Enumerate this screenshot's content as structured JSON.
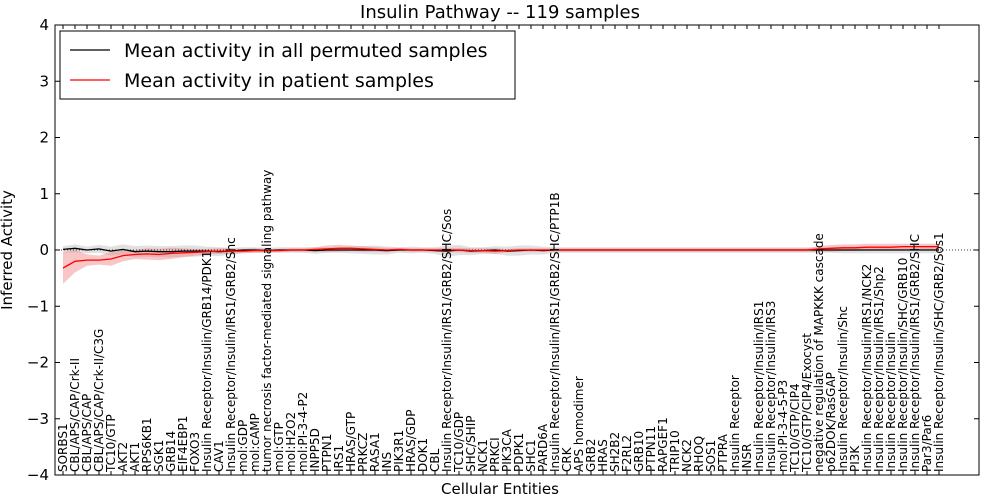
{
  "chart_data": {
    "type": "line",
    "title": "Insulin Pathway -- 119 samples",
    "xlabel": "Cellular Entities",
    "ylabel": "Inferred Activity",
    "ylim": [
      -4,
      4
    ],
    "yticks": [
      "−4",
      "−3",
      "−2",
      "−1",
      "0",
      "1",
      "2",
      "3",
      "4"
    ],
    "legend_position": "top-left",
    "categories": [
      "SORBS1",
      "CBL/APS/CAP/Crk-II",
      "CBL/APS/CAP",
      "CBL/APS/CAP/Crk-II/C3G",
      "TC10/GTP",
      "AKT2",
      "AKT1",
      "RPS6KB1",
      "SGK1",
      "GRB14",
      "EIF4EBP1",
      "FOXO3",
      "Insulin Receptor/Insulin/GRB14/PDK1",
      "CAV1",
      "Insulin Receptor/Insulin/IRS1/GRB2/Shc",
      "mol:GDP",
      "mol:cAMP",
      "tumor necrosis factor-mediated signaling pathway",
      "mol:GTP",
      "mol:H2O2",
      "mol:PI-3-4-P2",
      "INPP5D",
      "PTPN1",
      "IRS1",
      "HRAS/GTP",
      "PRKCZ",
      "RASA1",
      "INS",
      "PIK3R1",
      "HRAS/GDP",
      "DOK1",
      "CBL",
      "Insulin Receptor/Insulin/IRS1/GRB2/SHC/Sos",
      "TC10/GDP",
      "SHC/SHIP",
      "NCK1",
      "PRKCI",
      "PIK3CA",
      "PDPK1",
      "SHC1",
      "PARD6A",
      "Insulin Receptor/Insulin/IRS1/GRB2/SHC/PTP1B",
      "CRK",
      "APS homodimer",
      "GRB2",
      "HRAS",
      "SH2B2",
      "F2RL2",
      "GRB10",
      "PTPN11",
      "RAPGEF1",
      "TRIP10",
      "NCK2",
      "RHOQ",
      "SOS1",
      "PTPRA",
      "Insulin Receptor",
      "INSR",
      "Insulin Receptor/Insulin/IRS1",
      "Insulin Receptor/Insulin/IRS3",
      "mol:PI-3-4-5-P3",
      "TC10/GTP/CIP4",
      "TC10/GTP/CIP4/Exocyst",
      "negative regulation of MAPKKK cascade",
      "p62DOK/RasGAP",
      "Insulin Receptor/Insulin/Shc",
      "PI3K",
      "Insulin Receptor/Insulin/IRS1/NCK2",
      "Insulin Receptor/Insulin/IRS1/Shp2",
      "Insulin Receptor/Insulin",
      "Insulin Receptor/Insulin/SHC/GRB10",
      "Insulin Receptor/Insulin/IRS1/GRB2/SHC",
      "Par3/Par6",
      "Insulin Receptor/Insulin/SHC/GRB2/Sos1"
    ],
    "series": [
      {
        "name": "Mean activity in all permuted samples",
        "color": "#000000",
        "values": [
          0.01,
          0.03,
          0.0,
          0.02,
          -0.02,
          0.01,
          -0.03,
          -0.02,
          -0.03,
          -0.03,
          -0.02,
          -0.02,
          -0.02,
          -0.03,
          -0.02,
          0.0,
          0.0,
          -0.01,
          0.0,
          0.0,
          0.0,
          -0.01,
          0.0,
          0.0,
          0.0,
          0.0,
          0.0,
          -0.01,
          0.0,
          0.0,
          0.0,
          -0.01,
          -0.02,
          0.0,
          -0.02,
          -0.01,
          0.0,
          -0.02,
          -0.01,
          0.0,
          -0.01,
          0.0,
          0.0,
          0.0,
          0.0,
          0.0,
          0.0,
          0.0,
          0.0,
          0.0,
          0.0,
          0.0,
          0.0,
          0.0,
          0.0,
          0.0,
          0.0,
          0.0,
          0.0,
          0.0,
          0.0,
          0.0,
          0.0,
          0.0,
          0.0,
          0.0,
          0.0,
          0.0,
          0.0,
          0.0,
          0.0,
          0.0,
          0.0,
          0.0
        ],
        "band": [
          0.06,
          0.07,
          0.06,
          0.07,
          0.08,
          0.09,
          0.1,
          0.1,
          0.1,
          0.1,
          0.1,
          0.1,
          0.08,
          0.08,
          0.06,
          0.05,
          0.05,
          0.05,
          0.05,
          0.05,
          0.05,
          0.06,
          0.05,
          0.05,
          0.06,
          0.07,
          0.08,
          0.07,
          0.05,
          0.06,
          0.05,
          0.06,
          0.1,
          0.09,
          0.07,
          0.06,
          0.07,
          0.08,
          0.09,
          0.08,
          0.07,
          0.05,
          0.05,
          0.05,
          0.05,
          0.05,
          0.05,
          0.05,
          0.05,
          0.05,
          0.05,
          0.05,
          0.05,
          0.05,
          0.05,
          0.05,
          0.05,
          0.05,
          0.05,
          0.05,
          0.05,
          0.05,
          0.05,
          0.05,
          0.05,
          0.06,
          0.06,
          0.06,
          0.06,
          0.06,
          0.06,
          0.06,
          0.06,
          0.06
        ]
      },
      {
        "name": "Mean activity in patient samples",
        "color": "#ff0000",
        "band_color": "#f08080",
        "values": [
          -0.32,
          -0.2,
          -0.18,
          -0.18,
          -0.16,
          -0.1,
          -0.08,
          -0.07,
          -0.08,
          -0.06,
          -0.05,
          -0.04,
          -0.03,
          -0.02,
          -0.02,
          -0.02,
          -0.01,
          -0.01,
          -0.01,
          0.0,
          0.0,
          0.01,
          0.02,
          0.03,
          0.03,
          0.02,
          0.01,
          0.0,
          0.01,
          0.0,
          0.0,
          0.0,
          0.0,
          0.0,
          -0.01,
          -0.01,
          -0.02,
          -0.01,
          0.0,
          0.0,
          0.0,
          0.0,
          0.0,
          0.0,
          0.0,
          0.0,
          0.0,
          0.0,
          0.0,
          0.0,
          0.0,
          0.0,
          0.0,
          0.0,
          0.0,
          0.0,
          0.0,
          0.0,
          0.0,
          0.0,
          0.0,
          0.0,
          0.0,
          0.02,
          0.03,
          0.04,
          0.04,
          0.05,
          0.05,
          0.05,
          0.06,
          0.06,
          0.06,
          0.06
        ],
        "band": [
          0.28,
          0.2,
          0.1,
          0.08,
          0.12,
          0.1,
          0.08,
          0.1,
          0.1,
          0.1,
          0.08,
          0.06,
          0.05,
          0.05,
          0.05,
          0.04,
          0.04,
          0.03,
          0.03,
          0.03,
          0.03,
          0.04,
          0.06,
          0.06,
          0.05,
          0.05,
          0.04,
          0.04,
          0.03,
          0.03,
          0.03,
          0.03,
          0.04,
          0.04,
          0.04,
          0.04,
          0.05,
          0.03,
          0.03,
          0.03,
          0.03,
          0.03,
          0.03,
          0.03,
          0.03,
          0.03,
          0.03,
          0.03,
          0.03,
          0.03,
          0.03,
          0.03,
          0.03,
          0.03,
          0.03,
          0.03,
          0.03,
          0.03,
          0.03,
          0.03,
          0.03,
          0.03,
          0.03,
          0.05,
          0.06,
          0.06,
          0.06,
          0.06,
          0.06,
          0.06,
          0.05,
          0.05,
          0.05,
          0.05
        ]
      }
    ]
  }
}
